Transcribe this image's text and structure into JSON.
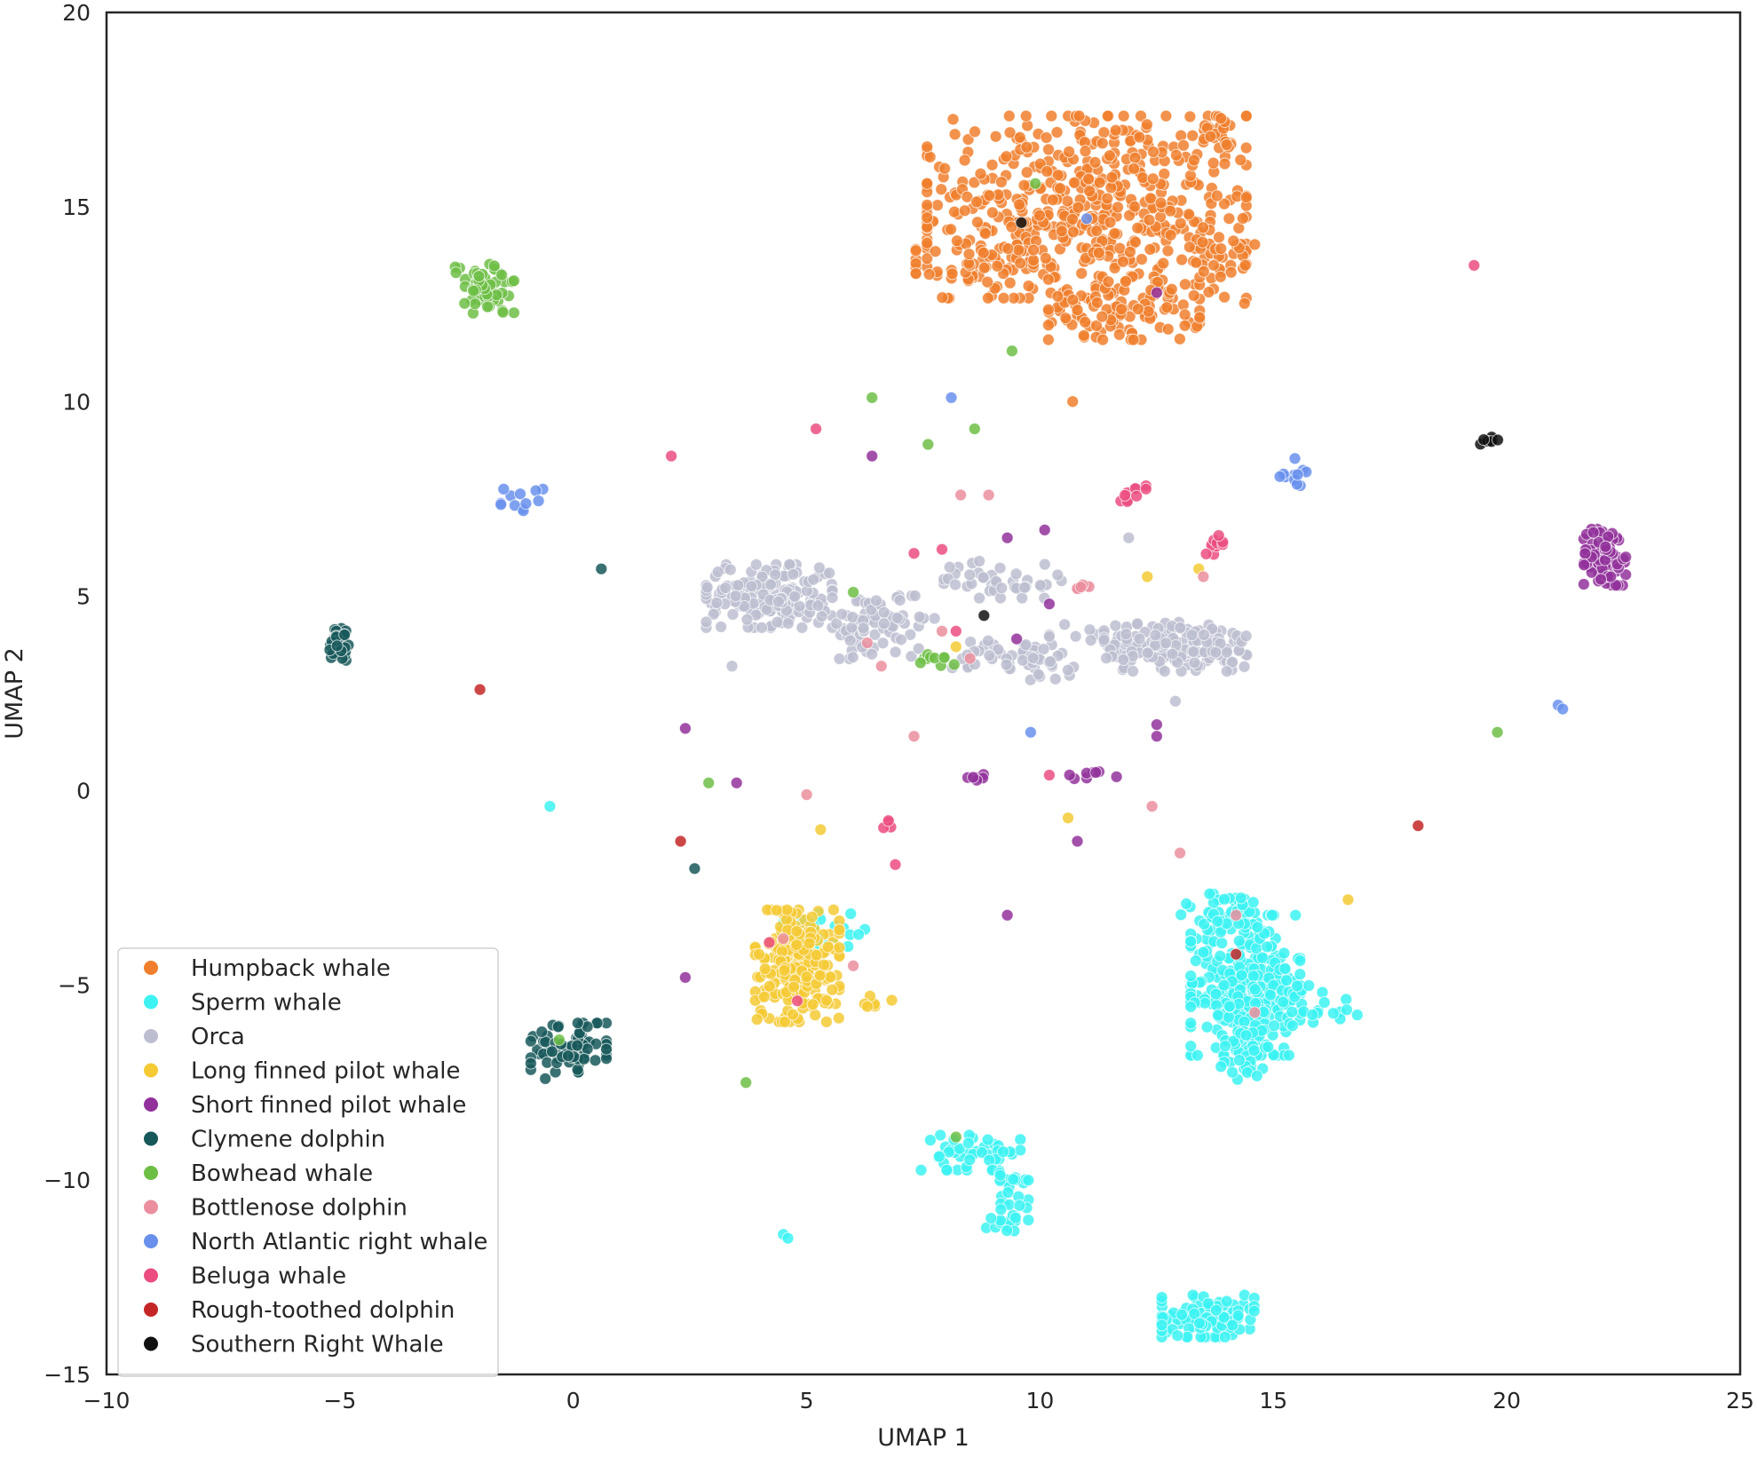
{
  "chart_data": {
    "type": "scatter",
    "title": "",
    "xlabel": "UMAP 1",
    "ylabel": "UMAP 2",
    "xlim": [
      -10,
      25
    ],
    "ylim": [
      -15,
      20
    ],
    "xticks": [
      -10,
      -5,
      0,
      5,
      10,
      15,
      20,
      25
    ],
    "yticks": [
      -15,
      -10,
      -5,
      0,
      5,
      10,
      15,
      20
    ],
    "xtick_labels": [
      "−10",
      "−5",
      "0",
      "5",
      "10",
      "15",
      "20",
      "25"
    ],
    "ytick_labels": [
      "−15",
      "−10",
      "−5",
      "0",
      "5",
      "10",
      "15",
      "20"
    ],
    "grid": false,
    "legend_position": "lower-left",
    "series": [
      {
        "name": "Humpback whale",
        "color": "#F07F2D",
        "clusters": [
          {
            "center": [
              11.0,
              15.0
            ],
            "spread": [
              1.9,
              1.3
            ],
            "n": 520
          },
          {
            "center": [
              11.8,
              12.4
            ],
            "spread": [
              0.9,
              0.45
            ],
            "n": 110
          },
          {
            "center": [
              8.6,
              13.5
            ],
            "spread": [
              0.7,
              0.25
            ],
            "n": 45
          },
          {
            "center": [
              13.7,
              13.6
            ],
            "spread": [
              0.5,
              0.6
            ],
            "n": 35
          },
          {
            "center": [
              13.8,
              17.0
            ],
            "spread": [
              0.25,
              0.2
            ],
            "n": 14
          }
        ],
        "points": [
          [
            10.7,
            10.0
          ],
          [
            14.0,
            16.6
          ],
          [
            13.3,
            16.2
          ]
        ]
      },
      {
        "name": "Sperm whale",
        "color": "#3CF2F2",
        "clusters": [
          {
            "center": [
              14.4,
              -5.0
            ],
            "spread": [
              0.65,
              1.0
            ],
            "n": 300
          },
          {
            "center": [
              14.0,
              -3.1
            ],
            "spread": [
              0.6,
              0.25
            ],
            "n": 40
          },
          {
            "center": [
              15.5,
              -5.5
            ],
            "spread": [
              0.8,
              0.3
            ],
            "n": 45
          },
          {
            "center": [
              14.4,
              -6.7
            ],
            "spread": [
              0.3,
              0.4
            ],
            "n": 35
          },
          {
            "center": [
              13.6,
              -13.5
            ],
            "spread": [
              0.55,
              0.3
            ],
            "n": 120
          },
          {
            "center": [
              5.4,
              -3.7
            ],
            "spread": [
              0.5,
              0.3
            ],
            "n": 30
          },
          {
            "center": [
              8.5,
              -9.3
            ],
            "spread": [
              0.6,
              0.25
            ],
            "n": 40
          },
          {
            "center": [
              9.3,
              -10.0
            ],
            "spread": [
              0.25,
              0.4
            ],
            "n": 22
          },
          {
            "center": [
              9.3,
              -11.0
            ],
            "spread": [
              0.25,
              0.2
            ],
            "n": 18
          }
        ],
        "points": [
          [
            -0.5,
            -0.4
          ],
          [
            4.5,
            -11.4
          ],
          [
            4.6,
            -11.5
          ]
        ]
      },
      {
        "name": "Orca",
        "color": "#BCBED0",
        "clusters": [
          {
            "center": [
              4.2,
              5.0
            ],
            "spread": [
              0.75,
              0.45
            ],
            "n": 180
          },
          {
            "center": [
              6.5,
              4.2
            ],
            "spread": [
              0.5,
              0.45
            ],
            "n": 70
          },
          {
            "center": [
              9.2,
              5.4
            ],
            "spread": [
              0.7,
              0.25
            ],
            "n": 40
          },
          {
            "center": [
              9.0,
              3.5
            ],
            "spread": [
              0.5,
              0.2
            ],
            "n": 28
          },
          {
            "center": [
              10.0,
              3.3
            ],
            "spread": [
              0.4,
              0.25
            ],
            "n": 28
          },
          {
            "center": [
              11.1,
              4.0
            ],
            "spread": [
              0.5,
              0.15
            ],
            "n": 12
          },
          {
            "center": [
              12.9,
              3.7
            ],
            "spread": [
              0.85,
              0.35
            ],
            "n": 160
          },
          {
            "center": [
              7.2,
              4.4
            ],
            "spread": [
              0.3,
              0.1
            ],
            "n": 10
          }
        ],
        "points": [
          [
            3.4,
            3.2
          ],
          [
            12.9,
            2.3
          ],
          [
            11.9,
            6.5
          ],
          [
            8.7,
            5.9
          ],
          [
            10.6,
            3.1
          ]
        ]
      },
      {
        "name": "Long finned pilot whale",
        "color": "#F5CA35",
        "clusters": [
          {
            "center": [
              4.8,
              -4.5
            ],
            "spread": [
              0.5,
              0.8
            ],
            "n": 230
          },
          {
            "center": [
              6.6,
              -5.4
            ],
            "spread": [
              0.2,
              0.08
            ],
            "n": 6
          }
        ],
        "points": [
          [
            12.3,
            5.5
          ],
          [
            13.4,
            5.7
          ],
          [
            10.6,
            -0.7
          ],
          [
            5.3,
            -1.0
          ],
          [
            16.6,
            -2.8
          ],
          [
            8.2,
            3.7
          ]
        ]
      },
      {
        "name": "Short finned pilot whale",
        "color": "#92319B",
        "clusters": [
          {
            "center": [
              22.1,
              6.0
            ],
            "spread": [
              0.25,
              0.4
            ],
            "n": 90
          },
          {
            "center": [
              8.6,
              0.3
            ],
            "spread": [
              0.12,
              0.1
            ],
            "n": 6
          },
          {
            "center": [
              11.1,
              0.4
            ],
            "spread": [
              0.3,
              0.05
            ],
            "n": 8
          }
        ],
        "points": [
          [
            6.4,
            8.6
          ],
          [
            10.1,
            6.7
          ],
          [
            9.3,
            6.5
          ],
          [
            2.4,
            1.6
          ],
          [
            3.5,
            0.2
          ],
          [
            2.4,
            -4.8
          ],
          [
            9.3,
            -3.2
          ],
          [
            10.8,
            -1.3
          ],
          [
            12.5,
            1.7
          ],
          [
            12.5,
            1.4
          ],
          [
            12.5,
            12.8
          ],
          [
            9.5,
            3.9
          ],
          [
            10.2,
            4.8
          ]
        ]
      },
      {
        "name": "Clymene dolphin",
        "color": "#17585A",
        "clusters": [
          {
            "center": [
              -5.0,
              3.8
            ],
            "spread": [
              0.12,
              0.25
            ],
            "n": 45
          },
          {
            "center": [
              -0.1,
              -6.6
            ],
            "spread": [
              0.45,
              0.35
            ],
            "n": 70
          }
        ],
        "points": [
          [
            0.6,
            5.7
          ],
          [
            2.6,
            -2.0
          ],
          [
            -0.6,
            -7.4
          ]
        ]
      },
      {
        "name": "Bowhead whale",
        "color": "#6DBE45",
        "clusters": [
          {
            "center": [
              -1.9,
              12.9
            ],
            "spread": [
              0.35,
              0.35
            ],
            "n": 70
          },
          {
            "center": [
              7.8,
              3.4
            ],
            "spread": [
              0.2,
              0.12
            ],
            "n": 10
          }
        ],
        "points": [
          [
            9.4,
            11.3
          ],
          [
            6.4,
            10.1
          ],
          [
            7.6,
            8.9
          ],
          [
            8.6,
            9.3
          ],
          [
            2.9,
            0.2
          ],
          [
            19.8,
            1.5
          ],
          [
            3.7,
            -7.5
          ],
          [
            6.0,
            5.1
          ],
          [
            9.9,
            15.6
          ],
          [
            8.2,
            -8.9
          ],
          [
            -0.3,
            -6.4
          ]
        ]
      },
      {
        "name": "Bottlenose dolphin",
        "color": "#EB8E9E",
        "clusters": [
          {
            "center": [
              10.9,
              5.2
            ],
            "spread": [
              0.12,
              0.05
            ],
            "n": 6
          }
        ],
        "points": [
          [
            8.3,
            7.6
          ],
          [
            8.9,
            7.6
          ],
          [
            7.3,
            1.4
          ],
          [
            5.0,
            -0.1
          ],
          [
            12.4,
            -0.4
          ],
          [
            13.0,
            -1.6
          ],
          [
            6.0,
            -4.5
          ],
          [
            14.6,
            -5.7
          ],
          [
            7.9,
            4.1
          ],
          [
            6.3,
            3.8
          ],
          [
            8.5,
            3.4
          ],
          [
            13.5,
            5.5
          ],
          [
            4.5,
            -3.8
          ],
          [
            6.6,
            3.2
          ],
          [
            14.2,
            -3.2
          ]
        ]
      },
      {
        "name": "North Atlantic right whale",
        "color": "#6890EC",
        "clusters": [
          {
            "center": [
              15.5,
              8.2
            ],
            "spread": [
              0.2,
              0.2
            ],
            "n": 12
          },
          {
            "center": [
              -1.1,
              7.3
            ],
            "spread": [
              0.25,
              0.25
            ],
            "n": 12
          }
        ],
        "points": [
          [
            8.1,
            10.1
          ],
          [
            9.8,
            1.5
          ],
          [
            21.1,
            2.2
          ],
          [
            21.2,
            2.1
          ],
          [
            11.0,
            14.7
          ]
        ]
      },
      {
        "name": "Beluga whale",
        "color": "#EB4D80",
        "clusters": [
          {
            "center": [
              12.0,
              7.7
            ],
            "spread": [
              0.15,
              0.15
            ],
            "n": 10
          },
          {
            "center": [
              13.7,
              6.3
            ],
            "spread": [
              0.12,
              0.15
            ],
            "n": 10
          },
          {
            "center": [
              6.7,
              -0.9
            ],
            "spread": [
              0.08,
              0.08
            ],
            "n": 4
          }
        ],
        "points": [
          [
            19.3,
            13.5
          ],
          [
            5.2,
            9.3
          ],
          [
            2.1,
            8.6
          ],
          [
            7.3,
            6.1
          ],
          [
            7.9,
            6.2
          ],
          [
            10.2,
            0.4
          ],
          [
            6.9,
            -1.9
          ],
          [
            8.2,
            4.1
          ],
          [
            4.2,
            -3.9
          ],
          [
            4.8,
            -5.4
          ]
        ]
      },
      {
        "name": "Rough-toothed dolphin",
        "color": "#C42626",
        "clusters": [],
        "points": [
          [
            -2.0,
            2.6
          ],
          [
            2.3,
            -1.3
          ],
          [
            18.1,
            -0.9
          ],
          [
            14.2,
            -4.2
          ]
        ]
      },
      {
        "name": "Southern Right Whale",
        "color": "#111111",
        "clusters": [
          {
            "center": [
              19.6,
              9.0
            ],
            "spread": [
              0.12,
              0.06
            ],
            "n": 8
          }
        ],
        "points": [
          [
            8.8,
            4.5
          ],
          [
            9.6,
            14.6
          ]
        ]
      }
    ]
  }
}
